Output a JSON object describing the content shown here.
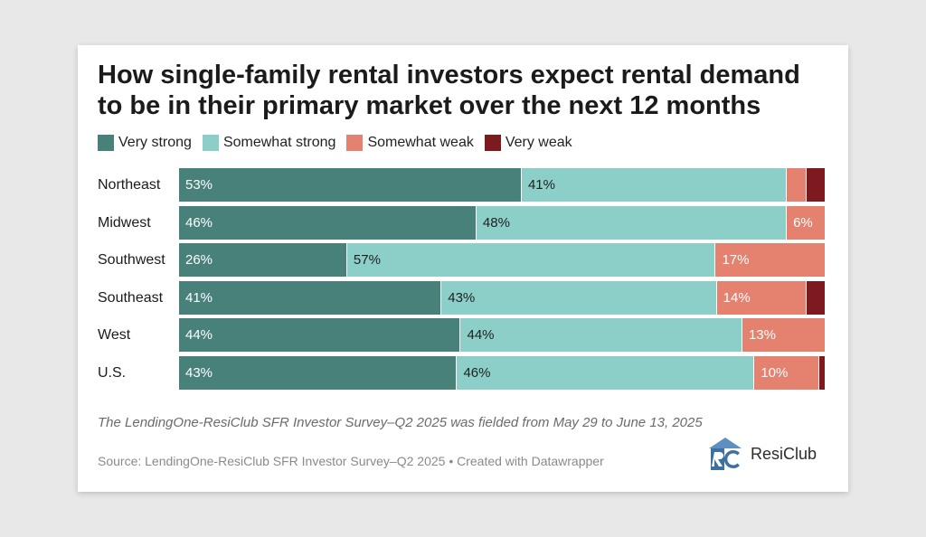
{
  "title": "How single-family rental investors expect rental demand to be in their primary market over the next 12 months",
  "note": "The LendingOne-ResiClub SFR Investor Survey–Q2 2025 was fielded from May 29 to June 13, 2025",
  "source": "Source: LendingOne-ResiClub SFR Investor Survey–Q2 2025 • Created with Datawrapper",
  "logo_text": "ResiClub",
  "chart_data": {
    "type": "bar",
    "orientation": "horizontal",
    "stacked": true,
    "normalized_percent": true,
    "title": "How single-family rental investors expect rental demand to be in their primary market over the next 12 months",
    "legend_position": "top-left",
    "grid": false,
    "categories": [
      "Northeast",
      "Midwest",
      "Southwest",
      "Southeast",
      "West",
      "U.S."
    ],
    "series": [
      {
        "name": "Very strong",
        "color": "#48807a",
        "values": [
          53,
          46,
          26,
          41,
          44,
          43
        ],
        "labels": [
          "53%",
          "46%",
          "26%",
          "41%",
          "44%",
          "43%"
        ]
      },
      {
        "name": "Somewhat strong",
        "color": "#8ccfc9",
        "values": [
          41,
          48,
          57,
          43,
          44,
          46
        ],
        "labels": [
          "41%",
          "48%",
          "57%",
          "43%",
          "44%",
          "46%"
        ]
      },
      {
        "name": "Somewhat weak",
        "color": "#e5816f",
        "values": [
          3,
          6,
          17,
          14,
          13,
          10
        ],
        "labels": [
          "",
          "6%",
          "17%",
          "14%",
          "13%",
          "10%"
        ]
      },
      {
        "name": "Very weak",
        "color": "#7d1a20",
        "values": [
          3,
          0,
          0,
          3,
          0,
          1
        ],
        "labels": [
          "",
          "",
          "",
          "",
          "",
          ""
        ]
      }
    ]
  }
}
